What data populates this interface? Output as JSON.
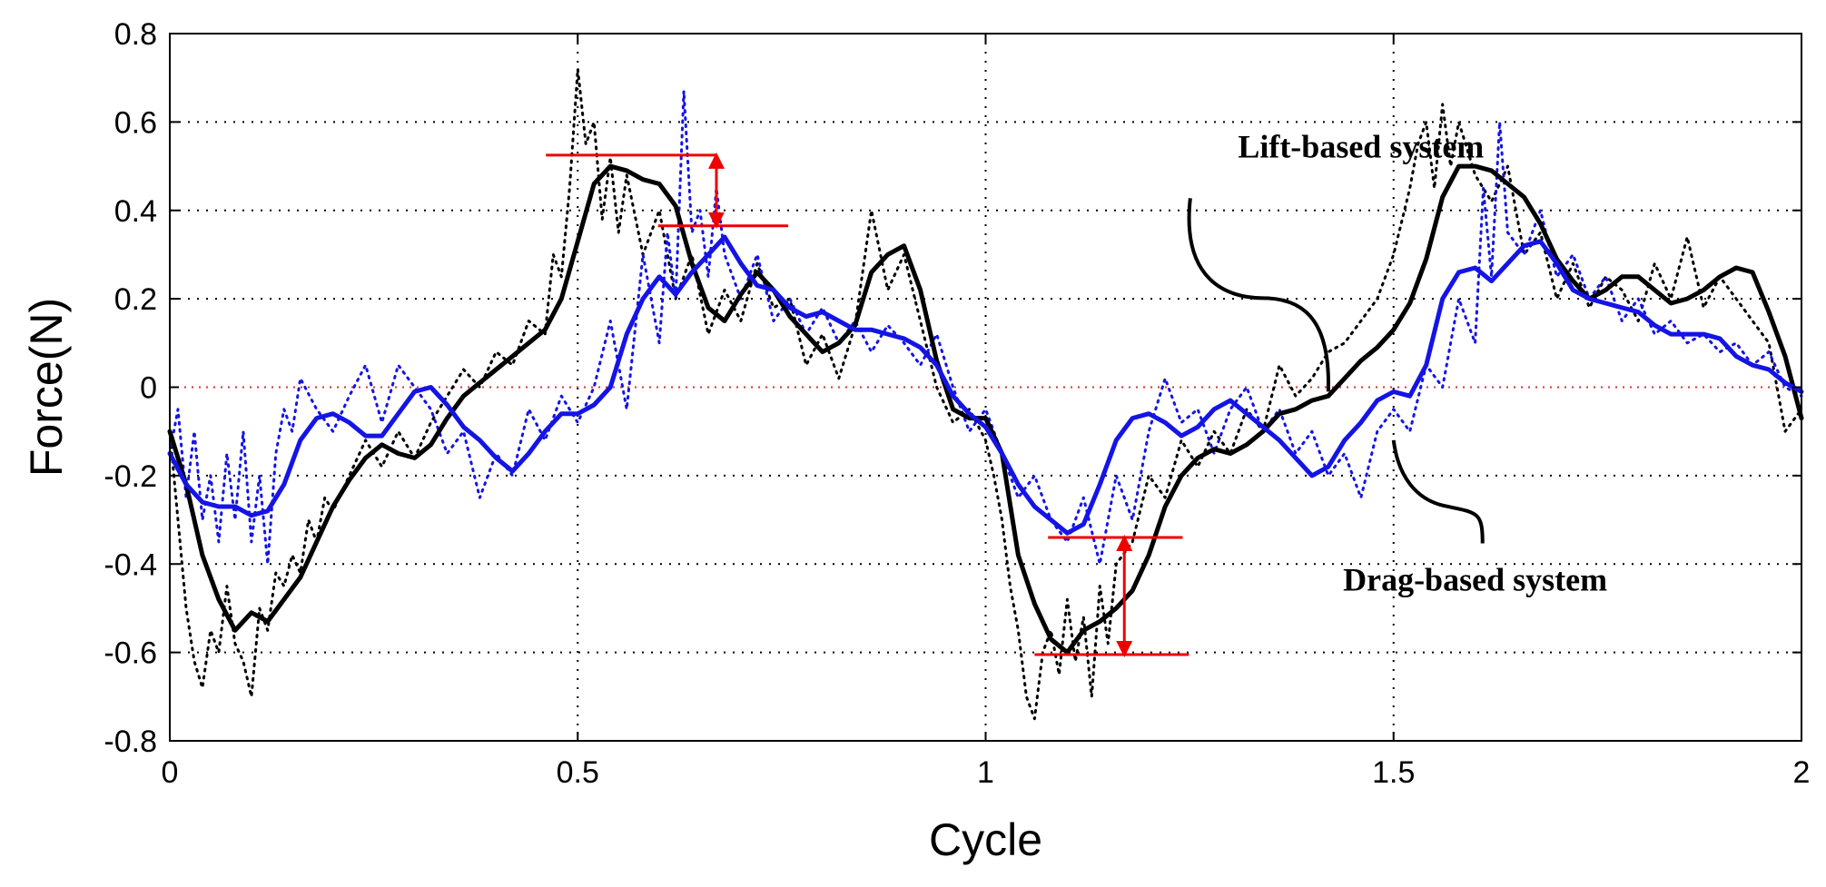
{
  "chart_data": {
    "type": "line",
    "title": "",
    "xlabel": "Cycle",
    "ylabel": "Force(N)",
    "xlim": [
      0,
      2
    ],
    "ylim": [
      -0.8,
      0.8
    ],
    "xticks": [
      0,
      0.5,
      1,
      1.5,
      2
    ],
    "xtick_labels": [
      "0",
      "0.5",
      "1",
      "1.5",
      "2"
    ],
    "yticks": [
      -0.8,
      -0.6,
      -0.4,
      -0.2,
      0,
      0.2,
      0.4,
      0.6,
      0.8
    ],
    "ytick_labels": [
      "-0.8",
      "-0.6",
      "-0.4",
      "-0.2",
      "0",
      "0.2",
      "0.4",
      "0.6",
      "0.8"
    ],
    "grid": true,
    "legend": "none",
    "colors": {
      "lift": "#000000",
      "drag": "#1414e6",
      "annotation": "#ee0000",
      "zero_line": "#e03030",
      "grid": "#000000"
    },
    "annotations": [
      {
        "text": "Lift-based system",
        "x": 1.46,
        "y": 0.52,
        "pointer_to": [
          1.42,
          -0.01
        ]
      },
      {
        "text": "Drag-based system",
        "x": 1.6,
        "y": -0.46,
        "pointer_to": [
          1.5,
          -0.12
        ]
      }
    ],
    "difference_markers": [
      {
        "x": 0.67,
        "y_top": 0.525,
        "y_bottom": 0.365
      },
      {
        "x": 1.17,
        "y_top": -0.34,
        "y_bottom": -0.605
      }
    ],
    "series": [
      {
        "line_style": "solid",
        "color_key": "lift",
        "x": [
          0,
          0.02,
          0.04,
          0.06,
          0.08,
          0.1,
          0.12,
          0.14,
          0.16,
          0.18,
          0.2,
          0.22,
          0.24,
          0.26,
          0.28,
          0.3,
          0.32,
          0.34,
          0.36,
          0.38,
          0.4,
          0.42,
          0.44,
          0.46,
          0.48,
          0.5,
          0.52,
          0.54,
          0.56,
          0.58,
          0.6,
          0.62,
          0.64,
          0.66,
          0.68,
          0.7,
          0.72,
          0.74,
          0.76,
          0.78,
          0.8,
          0.82,
          0.84,
          0.86,
          0.88,
          0.9,
          0.92,
          0.94,
          0.96,
          0.98,
          1.0,
          1.02,
          1.04,
          1.06,
          1.08,
          1.1,
          1.12,
          1.14,
          1.16,
          1.18,
          1.2,
          1.22,
          1.24,
          1.26,
          1.28,
          1.3,
          1.32,
          1.34,
          1.36,
          1.38,
          1.4,
          1.42,
          1.44,
          1.46,
          1.48,
          1.5,
          1.52,
          1.54,
          1.56,
          1.58,
          1.6,
          1.62,
          1.64,
          1.66,
          1.68,
          1.7,
          1.72,
          1.74,
          1.76,
          1.78,
          1.8,
          1.82,
          1.84,
          1.86,
          1.88,
          1.9,
          1.92,
          1.94,
          1.96,
          1.98,
          2.0
        ],
        "y": [
          -0.1,
          -0.22,
          -0.38,
          -0.48,
          -0.55,
          -0.51,
          -0.53,
          -0.48,
          -0.43,
          -0.35,
          -0.27,
          -0.21,
          -0.16,
          -0.13,
          -0.15,
          -0.16,
          -0.13,
          -0.07,
          -0.02,
          0.01,
          0.04,
          0.07,
          0.1,
          0.13,
          0.2,
          0.33,
          0.46,
          0.5,
          0.49,
          0.47,
          0.46,
          0.41,
          0.28,
          0.18,
          0.15,
          0.21,
          0.26,
          0.22,
          0.16,
          0.12,
          0.08,
          0.1,
          0.14,
          0.26,
          0.3,
          0.32,
          0.22,
          0.06,
          -0.05,
          -0.07,
          -0.07,
          -0.15,
          -0.38,
          -0.49,
          -0.57,
          -0.6,
          -0.55,
          -0.53,
          -0.5,
          -0.46,
          -0.38,
          -0.27,
          -0.2,
          -0.16,
          -0.14,
          -0.15,
          -0.13,
          -0.1,
          -0.06,
          -0.05,
          -0.03,
          -0.02,
          0.02,
          0.06,
          0.09,
          0.13,
          0.19,
          0.29,
          0.43,
          0.5,
          0.5,
          0.49,
          0.46,
          0.43,
          0.37,
          0.29,
          0.24,
          0.2,
          0.22,
          0.25,
          0.25,
          0.22,
          0.19,
          0.2,
          0.22,
          0.25,
          0.27,
          0.26,
          0.17,
          0.07,
          -0.07
        ]
      },
      {
        "line_style": "solid",
        "color_key": "drag",
        "x": [
          0,
          0.02,
          0.04,
          0.06,
          0.08,
          0.1,
          0.12,
          0.14,
          0.16,
          0.18,
          0.2,
          0.22,
          0.24,
          0.26,
          0.28,
          0.3,
          0.32,
          0.34,
          0.36,
          0.38,
          0.4,
          0.42,
          0.44,
          0.46,
          0.48,
          0.5,
          0.52,
          0.54,
          0.56,
          0.58,
          0.6,
          0.62,
          0.64,
          0.66,
          0.68,
          0.7,
          0.72,
          0.74,
          0.76,
          0.78,
          0.8,
          0.82,
          0.84,
          0.86,
          0.88,
          0.9,
          0.92,
          0.94,
          0.96,
          0.98,
          1.0,
          1.02,
          1.04,
          1.06,
          1.08,
          1.1,
          1.12,
          1.14,
          1.16,
          1.18,
          1.2,
          1.22,
          1.24,
          1.26,
          1.28,
          1.3,
          1.32,
          1.34,
          1.36,
          1.38,
          1.4,
          1.42,
          1.44,
          1.46,
          1.48,
          1.5,
          1.52,
          1.54,
          1.56,
          1.58,
          1.6,
          1.62,
          1.64,
          1.66,
          1.68,
          1.7,
          1.72,
          1.74,
          1.76,
          1.78,
          1.8,
          1.82,
          1.84,
          1.86,
          1.88,
          1.9,
          1.92,
          1.94,
          1.96,
          1.98,
          2.0
        ],
        "y": [
          -0.15,
          -0.22,
          -0.26,
          -0.27,
          -0.27,
          -0.29,
          -0.28,
          -0.22,
          -0.12,
          -0.07,
          -0.06,
          -0.08,
          -0.11,
          -0.11,
          -0.06,
          -0.01,
          0.0,
          -0.04,
          -0.09,
          -0.12,
          -0.16,
          -0.19,
          -0.15,
          -0.1,
          -0.06,
          -0.06,
          -0.04,
          0.0,
          0.12,
          0.2,
          0.25,
          0.21,
          0.26,
          0.3,
          0.34,
          0.28,
          0.23,
          0.22,
          0.18,
          0.16,
          0.17,
          0.15,
          0.13,
          0.13,
          0.12,
          0.11,
          0.09,
          0.05,
          -0.02,
          -0.06,
          -0.09,
          -0.15,
          -0.22,
          -0.27,
          -0.3,
          -0.33,
          -0.31,
          -0.22,
          -0.12,
          -0.07,
          -0.06,
          -0.08,
          -0.11,
          -0.09,
          -0.05,
          -0.03,
          -0.06,
          -0.09,
          -0.12,
          -0.16,
          -0.2,
          -0.18,
          -0.12,
          -0.08,
          -0.03,
          -0.01,
          -0.02,
          0.05,
          0.2,
          0.26,
          0.27,
          0.24,
          0.28,
          0.32,
          0.33,
          0.28,
          0.22,
          0.2,
          0.19,
          0.18,
          0.17,
          0.14,
          0.12,
          0.12,
          0.12,
          0.11,
          0.07,
          0.05,
          0.04,
          0.01,
          -0.01
        ]
      },
      {
        "line_style": "dotted",
        "color_key": "lift",
        "x": [
          0,
          0.01,
          0.02,
          0.03,
          0.04,
          0.05,
          0.06,
          0.07,
          0.08,
          0.09,
          0.1,
          0.11,
          0.12,
          0.13,
          0.14,
          0.15,
          0.16,
          0.17,
          0.18,
          0.19,
          0.2,
          0.22,
          0.24,
          0.26,
          0.28,
          0.3,
          0.32,
          0.34,
          0.36,
          0.38,
          0.4,
          0.42,
          0.44,
          0.46,
          0.47,
          0.48,
          0.49,
          0.5,
          0.51,
          0.52,
          0.53,
          0.54,
          0.55,
          0.56,
          0.58,
          0.6,
          0.62,
          0.64,
          0.66,
          0.68,
          0.7,
          0.72,
          0.74,
          0.76,
          0.78,
          0.8,
          0.82,
          0.84,
          0.86,
          0.88,
          0.9,
          0.92,
          0.94,
          0.96,
          0.98,
          1.0,
          1.01,
          1.02,
          1.03,
          1.04,
          1.05,
          1.06,
          1.07,
          1.08,
          1.09,
          1.1,
          1.11,
          1.12,
          1.13,
          1.14,
          1.15,
          1.16,
          1.18,
          1.2,
          1.22,
          1.24,
          1.26,
          1.28,
          1.3,
          1.32,
          1.34,
          1.36,
          1.38,
          1.4,
          1.42,
          1.44,
          1.46,
          1.48,
          1.5,
          1.52,
          1.53,
          1.54,
          1.55,
          1.56,
          1.57,
          1.58,
          1.6,
          1.62,
          1.64,
          1.66,
          1.68,
          1.7,
          1.72,
          1.74,
          1.76,
          1.78,
          1.8,
          1.82,
          1.84,
          1.86,
          1.88,
          1.9,
          1.92,
          1.94,
          1.96,
          1.98,
          2.0
        ],
        "y": [
          -0.1,
          -0.3,
          -0.5,
          -0.62,
          -0.68,
          -0.55,
          -0.6,
          -0.45,
          -0.58,
          -0.62,
          -0.7,
          -0.5,
          -0.55,
          -0.42,
          -0.45,
          -0.38,
          -0.42,
          -0.3,
          -0.35,
          -0.25,
          -0.28,
          -0.2,
          -0.12,
          -0.18,
          -0.1,
          -0.16,
          -0.08,
          -0.02,
          0.04,
          0.0,
          0.08,
          0.05,
          0.15,
          0.12,
          0.3,
          0.25,
          0.45,
          0.72,
          0.55,
          0.6,
          0.38,
          0.52,
          0.35,
          0.48,
          0.3,
          0.4,
          0.2,
          0.3,
          0.12,
          0.22,
          0.15,
          0.28,
          0.18,
          0.2,
          0.05,
          0.12,
          0.02,
          0.14,
          0.4,
          0.22,
          0.3,
          0.15,
          0.0,
          -0.08,
          -0.05,
          -0.12,
          -0.2,
          -0.3,
          -0.45,
          -0.55,
          -0.7,
          -0.75,
          -0.6,
          -0.55,
          -0.65,
          -0.48,
          -0.62,
          -0.52,
          -0.7,
          -0.45,
          -0.58,
          -0.4,
          -0.35,
          -0.2,
          -0.25,
          -0.12,
          -0.18,
          -0.1,
          -0.15,
          -0.05,
          -0.1,
          0.05,
          -0.02,
          0.02,
          0.08,
          0.1,
          0.15,
          0.2,
          0.3,
          0.45,
          0.55,
          0.6,
          0.45,
          0.64,
          0.5,
          0.6,
          0.48,
          0.42,
          0.5,
          0.3,
          0.35,
          0.2,
          0.28,
          0.18,
          0.25,
          0.22,
          0.15,
          0.28,
          0.2,
          0.34,
          0.18,
          0.25,
          0.2,
          0.15,
          0.1,
          -0.1,
          -0.05
        ]
      },
      {
        "line_style": "dotted",
        "color_key": "drag",
        "x": [
          0,
          0.01,
          0.02,
          0.03,
          0.04,
          0.05,
          0.06,
          0.07,
          0.08,
          0.09,
          0.1,
          0.11,
          0.12,
          0.13,
          0.14,
          0.15,
          0.16,
          0.18,
          0.2,
          0.22,
          0.24,
          0.26,
          0.28,
          0.3,
          0.32,
          0.34,
          0.36,
          0.38,
          0.4,
          0.42,
          0.44,
          0.46,
          0.48,
          0.5,
          0.52,
          0.54,
          0.56,
          0.58,
          0.6,
          0.61,
          0.62,
          0.63,
          0.64,
          0.65,
          0.66,
          0.67,
          0.68,
          0.7,
          0.72,
          0.74,
          0.76,
          0.78,
          0.8,
          0.82,
          0.84,
          0.86,
          0.88,
          0.9,
          0.92,
          0.94,
          0.96,
          0.98,
          1.0,
          1.02,
          1.04,
          1.06,
          1.08,
          1.1,
          1.12,
          1.14,
          1.16,
          1.18,
          1.2,
          1.22,
          1.24,
          1.26,
          1.28,
          1.3,
          1.32,
          1.34,
          1.36,
          1.38,
          1.4,
          1.42,
          1.44,
          1.46,
          1.48,
          1.5,
          1.52,
          1.54,
          1.56,
          1.58,
          1.6,
          1.61,
          1.62,
          1.63,
          1.64,
          1.66,
          1.68,
          1.7,
          1.72,
          1.74,
          1.76,
          1.78,
          1.8,
          1.82,
          1.84,
          1.86,
          1.88,
          1.9,
          1.92,
          1.94,
          1.96,
          1.98,
          2.0
        ],
        "y": [
          -0.15,
          -0.05,
          -0.25,
          -0.1,
          -0.3,
          -0.2,
          -0.35,
          -0.15,
          -0.3,
          -0.1,
          -0.35,
          -0.2,
          -0.4,
          -0.15,
          -0.05,
          -0.1,
          0.02,
          -0.05,
          -0.1,
          -0.02,
          0.05,
          -0.08,
          0.05,
          0.0,
          -0.05,
          -0.15,
          -0.1,
          -0.25,
          -0.15,
          -0.2,
          -0.05,
          -0.12,
          -0.02,
          -0.08,
          0.0,
          0.15,
          -0.05,
          0.3,
          0.1,
          0.35,
          0.2,
          0.67,
          0.35,
          0.4,
          0.25,
          0.45,
          0.3,
          0.2,
          0.3,
          0.15,
          0.2,
          0.12,
          0.18,
          0.1,
          0.15,
          0.08,
          0.14,
          0.1,
          0.05,
          0.12,
          0.0,
          -0.1,
          -0.05,
          -0.15,
          -0.25,
          -0.2,
          -0.3,
          -0.35,
          -0.25,
          -0.4,
          -0.2,
          -0.3,
          -0.1,
          0.02,
          -0.08,
          -0.05,
          -0.15,
          -0.05,
          0.0,
          -0.1,
          -0.05,
          -0.15,
          -0.1,
          -0.2,
          -0.15,
          -0.25,
          -0.1,
          -0.05,
          -0.1,
          0.05,
          0.0,
          0.2,
          0.1,
          0.45,
          0.25,
          0.6,
          0.35,
          0.3,
          0.4,
          0.25,
          0.3,
          0.2,
          0.25,
          0.15,
          0.2,
          0.12,
          0.15,
          0.1,
          0.12,
          0.08,
          0.1,
          0.05,
          0.08,
          0.0,
          -0.02
        ]
      }
    ]
  }
}
